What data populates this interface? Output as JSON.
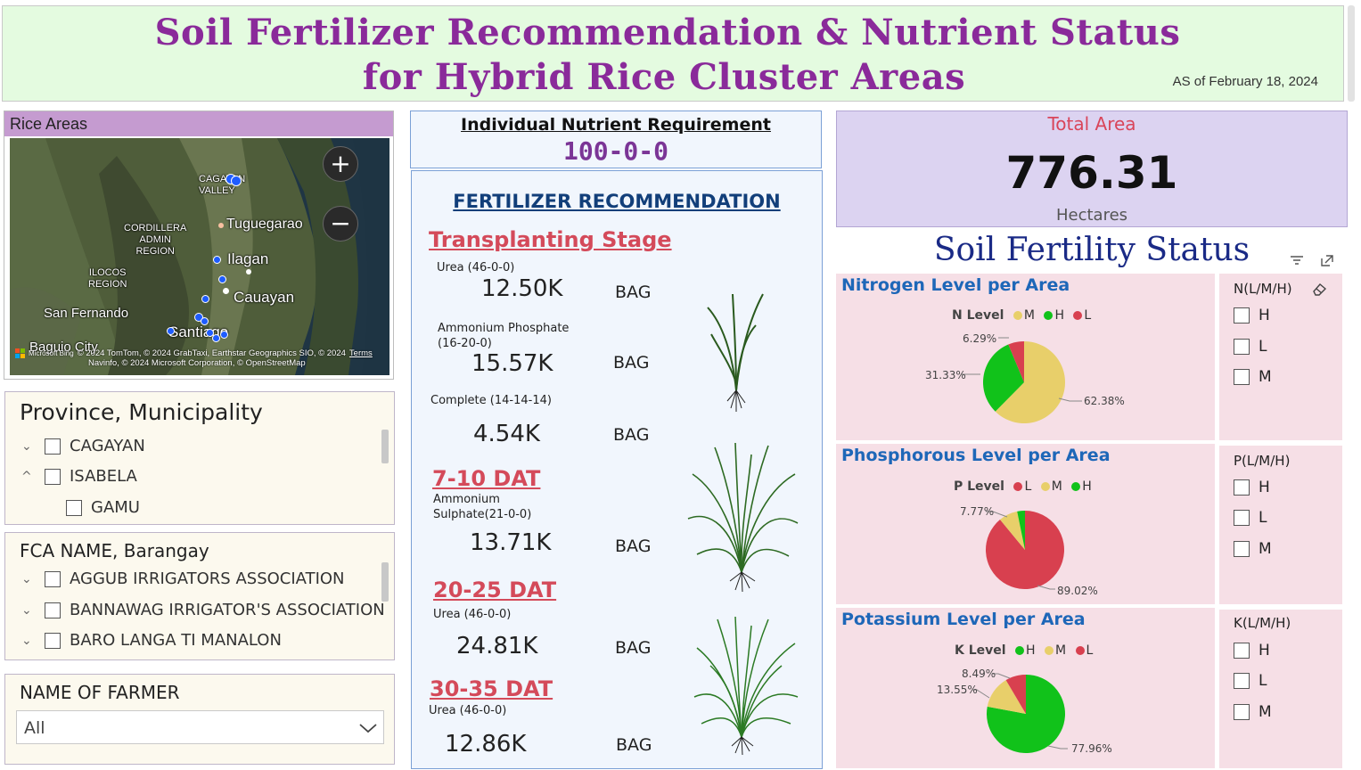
{
  "header": {
    "title_line1": "Soil Fertilizer Recommendation & Nutrient Status",
    "title_line2": "for Hybrid Rice Cluster Areas",
    "as_of": "AS of February 18, 2024"
  },
  "map": {
    "title": "Rice Areas",
    "labels": {
      "cagayan_valley": "CAGAYAN\nVALLEY",
      "cordillera": "CORDILLERA\nADMIN\nREGION",
      "ilocos": "ILOCOS\nREGION",
      "tuguegarao": "Tuguegarao",
      "ilagan": "Ilagan",
      "cauayan": "Cauayan",
      "san_fernando": "San Fernando",
      "santiago": "Santiago",
      "baguio": "Baguio City"
    },
    "zoom_in": "+",
    "zoom_out": "−",
    "credit_line1": "© 2024 TomTom, © 2024 GrabTaxi, Earthstar Geographics SIO, © 2024",
    "credit_terms": "Terms",
    "credit_bing": "Microsoft Bing",
    "credit_line2": "Navinfo, © 2024 Microsoft Corporation, © OpenStreetMap"
  },
  "province_slicer": {
    "title": "Province, Municipality",
    "items": [
      {
        "label": "CAGAYAN",
        "chevron": "⌄"
      },
      {
        "label": "ISABELA",
        "chevron": "^"
      },
      {
        "label": "GAMU",
        "chevron": ""
      }
    ]
  },
  "fca_slicer": {
    "title": "FCA NAME, Barangay",
    "items": [
      {
        "label": "AGGUB IRRIGATORS ASSOCIATION"
      },
      {
        "label": "BANNAWAG IRRIGATOR'S ASSOCIATION"
      },
      {
        "label": "BARO LANGA TI MANALON"
      }
    ]
  },
  "farmer_slicer": {
    "title": "NAME OF FARMER",
    "selected": "All"
  },
  "nutrient": {
    "title": "Individual Nutrient Requirement",
    "value": "100-0-0"
  },
  "fertilizer": {
    "title": "FERTILIZER RECOMMENDATION",
    "stages": {
      "transplanting": "Transplanting Stage",
      "dat_7_10": "7-10 DAT",
      "dat_20_25": "20-25 DAT",
      "dat_30_35": "30-35 DAT"
    },
    "items": [
      {
        "name": "Urea (46-0-0)",
        "value": "12.50K",
        "unit": "BAG"
      },
      {
        "name": "Ammonium Phosphate\n(16-20-0)",
        "value": "15.57K",
        "unit": "BAG"
      },
      {
        "name": "Complete (14-14-14)",
        "value": "4.54K",
        "unit": "BAG"
      },
      {
        "name": "Ammonium\nSulphate(21-0-0)",
        "value": "13.71K",
        "unit": "BAG"
      },
      {
        "name": "Urea (46-0-0)",
        "value": "24.81K",
        "unit": "BAG"
      },
      {
        "name": "Urea (46-0-0)",
        "value": "12.86K",
        "unit": "BAG"
      }
    ]
  },
  "total": {
    "title": "Total Area",
    "value": "776.31",
    "unit": "Hectares"
  },
  "soil_fertility": {
    "title": "Soil Fertility Status"
  },
  "nitrogen": {
    "title": "Nitrogen Level per Area",
    "legend_title": "N Level",
    "legend": [
      "M",
      "H",
      "L"
    ],
    "pct_small": "6.29%",
    "pct_mid": "31.33%",
    "pct_big": "62.38%",
    "filter_title": "N(L/M/H)",
    "filter_items": [
      "H",
      "L",
      "M"
    ]
  },
  "phosphorous": {
    "title": "Phosphorous Level per Area",
    "legend_title": "P Level",
    "legend": [
      "L",
      "M",
      "H"
    ],
    "pct_small": "7.77%",
    "pct_big": "89.02%",
    "filter_title": "P(L/M/H)",
    "filter_items": [
      "H",
      "L",
      "M"
    ]
  },
  "potassium": {
    "title": "Potassium Level per Area",
    "legend_title": "K Level",
    "legend": [
      "H",
      "M",
      "L"
    ],
    "pct_small": "8.49%",
    "pct_mid": "13.55%",
    "pct_big": "77.96%",
    "filter_title": "K(L/M/H)",
    "filter_items": [
      "H",
      "L",
      "M"
    ]
  },
  "colors": {
    "high": "#11c21a",
    "medium": "#e8cf6a",
    "low": "#d8404f",
    "title_purple": "#8a2a9a"
  },
  "pie_data": {
    "nitrogen": [
      {
        "level": "M",
        "value": 62.38
      },
      {
        "level": "H",
        "value": 31.33
      },
      {
        "level": "L",
        "value": 6.29
      }
    ],
    "phosphorous": [
      {
        "level": "L",
        "value": 89.02
      },
      {
        "level": "M",
        "value": 7.77
      },
      {
        "level": "H",
        "value": 3.21
      }
    ],
    "potassium": [
      {
        "level": "H",
        "value": 77.96
      },
      {
        "level": "M",
        "value": 13.55
      },
      {
        "level": "L",
        "value": 8.49
      }
    ]
  }
}
